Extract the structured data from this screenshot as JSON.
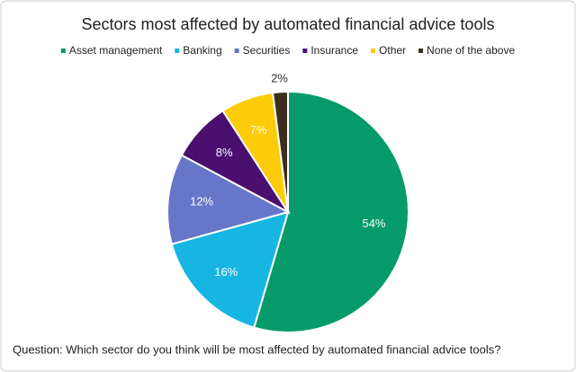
{
  "chart_data": {
    "type": "pie",
    "title": "Sectors most affected by automated financial advice tools",
    "categories": [
      "Asset management",
      "Banking",
      "Securities",
      "Insurance",
      "Other",
      "None of the above"
    ],
    "values": [
      54,
      16,
      12,
      8,
      7,
      2
    ],
    "value_labels": [
      "54%",
      "16%",
      "12%",
      "8%",
      "7%",
      "2%"
    ],
    "colors": [
      "#079a6a",
      "#17b6e2",
      "#6677c9",
      "#4a0f6f",
      "#fccc0a",
      "#3b2e1e"
    ],
    "legend": "top",
    "note": "Question: Which sector do you think will be most affected by automated financial advice tools?"
  }
}
